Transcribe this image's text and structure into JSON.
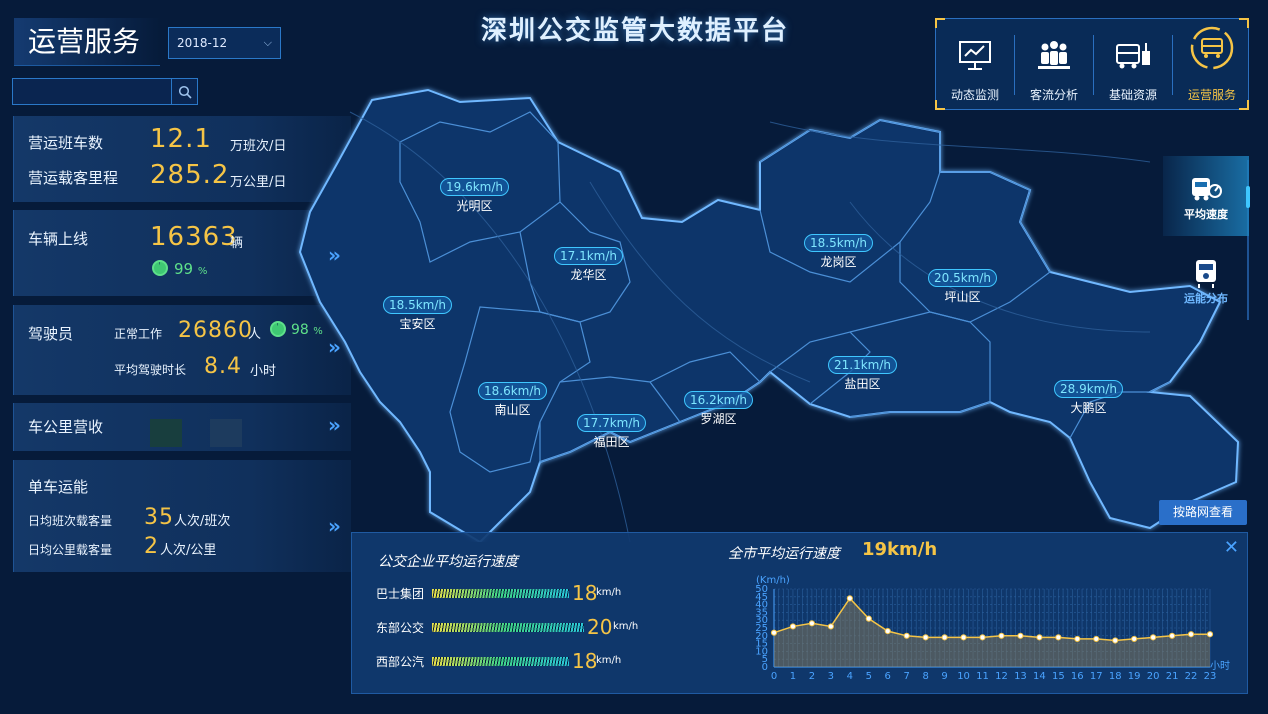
{
  "header": {
    "title": "深圳公交监管大数据平台"
  },
  "left": {
    "section_title": "运营服务",
    "month": "2018-12",
    "search": {
      "placeholder": ""
    },
    "cards": {
      "trips": {
        "label": "营运班车数",
        "value": "12.1",
        "unit": "万班次/日"
      },
      "mileage": {
        "label": "营运载客里程",
        "value": "285.2",
        "unit": "万公里/日"
      },
      "vehicles": {
        "label": "车辆上线",
        "value": "16363",
        "unit": "辆",
        "online_pct": "99",
        "pct_unit": "%"
      },
      "drivers": {
        "label": "驾驶员",
        "working_label": "正常工作",
        "working_value": "26860",
        "working_unit": "人",
        "working_pct": "98",
        "pct_unit": "%",
        "hours_label": "平均驾驶时长",
        "hours_value": "8.4",
        "hours_unit": "小时"
      },
      "revenue": {
        "label": "车公里营收"
      },
      "capacity": {
        "label": "单车运能",
        "daily_trip_label": "日均班次载客量",
        "daily_trip_value": "35",
        "daily_trip_unit": "人次/班次",
        "daily_km_label": "日均公里载客量",
        "daily_km_value": "2",
        "daily_km_unit": "人次/公里"
      }
    }
  },
  "nav": {
    "items": [
      {
        "label": "动态监测",
        "icon": "monitor-chart-icon"
      },
      {
        "label": "客流分析",
        "icon": "people-group-icon"
      },
      {
        "label": "基础资源",
        "icon": "bus-station-icon"
      },
      {
        "label": "运营服务",
        "icon": "bus-service-icon"
      }
    ],
    "active": "运营服务"
  },
  "side_tabs": [
    {
      "label": "平均速度",
      "icon": "speedometer-bus-icon"
    },
    {
      "label": "运能分布",
      "icon": "bus-distribution-icon"
    }
  ],
  "map": {
    "districts": [
      {
        "name": "光明区",
        "speed": "19.6km/h"
      },
      {
        "name": "龙华区",
        "speed": "17.1km/h"
      },
      {
        "name": "龙岗区",
        "speed": "18.5km/h"
      },
      {
        "name": "坪山区",
        "speed": "20.5km/h"
      },
      {
        "name": "宝安区",
        "speed": "18.5km/h"
      },
      {
        "name": "南山区",
        "speed": "18.6km/h"
      },
      {
        "name": "福田区",
        "speed": "17.7km/h"
      },
      {
        "name": "罗湖区",
        "speed": "16.2km/h"
      },
      {
        "name": "盐田区",
        "speed": "21.1km/h"
      },
      {
        "name": "大鹏区",
        "speed": "28.9km/h"
      }
    ],
    "route_button": "按路网查看"
  },
  "bottom": {
    "company_title": "公交企业平均运行速度",
    "companies": [
      {
        "name": "巴士集团",
        "value": "18",
        "unit": "km/h"
      },
      {
        "name": "东部公交",
        "value": "20",
        "unit": "km/h"
      },
      {
        "name": "西部公汽",
        "value": "18",
        "unit": "km/h"
      }
    ],
    "city_title": "全市平均运行速度",
    "city_value": "19km/h"
  },
  "chart_data": {
    "type": "area",
    "title": "",
    "xlabel": "小时",
    "ylabel": "(Km/h)",
    "x": [
      0,
      1,
      2,
      3,
      4,
      5,
      6,
      7,
      8,
      9,
      10,
      11,
      12,
      13,
      14,
      15,
      16,
      17,
      18,
      19,
      20,
      21,
      22,
      23
    ],
    "values": [
      22,
      26,
      28,
      26,
      44,
      31,
      23,
      20,
      19,
      19,
      19,
      19,
      20,
      20,
      19,
      19,
      18,
      18,
      17,
      18,
      19,
      20,
      21,
      21
    ],
    "ylim": [
      0,
      50
    ],
    "yticks": [
      0,
      5,
      10,
      15,
      20,
      25,
      30,
      35,
      40,
      45,
      50
    ],
    "grid": true,
    "colors": {
      "line": "#f5c446",
      "fill": "#8a7c5a"
    }
  },
  "colors": {
    "accent": "#f5c446",
    "cyan": "#3fc7ff",
    "bg": "#061b3a",
    "green": "#5ee08a"
  }
}
